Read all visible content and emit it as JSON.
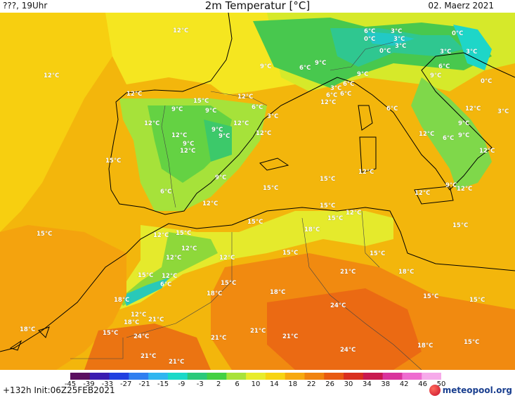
{
  "header": {
    "left": "???, 19Uhr",
    "title": "2m Temperatur [°C]",
    "date": "02. Maerz 2021"
  },
  "map": {
    "labels": [
      {
        "text": "12°C"
      },
      {
        "text": "12°C"
      },
      {
        "text": "12°C"
      },
      {
        "text": "9°C"
      },
      {
        "text": "6°C"
      },
      {
        "text": "9°C"
      },
      {
        "text": "6°C"
      },
      {
        "text": "3°C"
      },
      {
        "text": "0°C"
      },
      {
        "text": "3°C"
      },
      {
        "text": "0°C"
      },
      {
        "text": "3°C"
      },
      {
        "text": "3°C"
      },
      {
        "text": "0°C"
      },
      {
        "text": "3°C"
      },
      {
        "text": "6°C"
      },
      {
        "text": "9°C"
      },
      {
        "text": "6°C"
      },
      {
        "text": "9°C"
      },
      {
        "text": "0°C"
      },
      {
        "text": "3°C"
      },
      {
        "text": "6°C"
      },
      {
        "text": "6°C"
      },
      {
        "text": "12°C"
      },
      {
        "text": "12°C"
      },
      {
        "text": "15°C"
      },
      {
        "text": "12°C"
      },
      {
        "text": "9°C"
      },
      {
        "text": "9°C"
      },
      {
        "text": "6°C"
      },
      {
        "text": "3°C"
      },
      {
        "text": "12°C"
      },
      {
        "text": "9°C"
      },
      {
        "text": "12°C"
      },
      {
        "text": "9°C"
      },
      {
        "text": "12°C"
      },
      {
        "text": "9°C"
      },
      {
        "text": "12°C"
      },
      {
        "text": "12°C"
      },
      {
        "text": "9°C"
      },
      {
        "text": "12°C"
      },
      {
        "text": "3°C"
      },
      {
        "text": "12°C"
      },
      {
        "text": "9°C"
      },
      {
        "text": "6°C"
      },
      {
        "text": "6°C"
      },
      {
        "text": "12°C"
      },
      {
        "text": "15°C"
      },
      {
        "text": "9°C"
      },
      {
        "text": "15°C"
      },
      {
        "text": "15°C"
      },
      {
        "text": "12°C"
      },
      {
        "text": "12°C"
      },
      {
        "text": "9°C"
      },
      {
        "text": "6°C"
      },
      {
        "text": "12°C"
      },
      {
        "text": "15°C"
      },
      {
        "text": "12°C"
      },
      {
        "text": "15°C"
      },
      {
        "text": "12°C"
      },
      {
        "text": "15°C"
      },
      {
        "text": "15°C"
      },
      {
        "text": "15°C"
      },
      {
        "text": "12°C"
      },
      {
        "text": "18°C"
      },
      {
        "text": "15°C"
      },
      {
        "text": "15°C"
      },
      {
        "text": "12°C"
      },
      {
        "text": "12°C"
      },
      {
        "text": "15°C"
      },
      {
        "text": "15°C"
      },
      {
        "text": "21°C"
      },
      {
        "text": "18°C"
      },
      {
        "text": "15°C"
      },
      {
        "text": "12°C"
      },
      {
        "text": "15°C"
      },
      {
        "text": "6°C"
      },
      {
        "text": "18°C"
      },
      {
        "text": "18°C"
      },
      {
        "text": "15°C"
      },
      {
        "text": "18°C"
      },
      {
        "text": "12°C"
      },
      {
        "text": "18°C"
      },
      {
        "text": "21°C"
      },
      {
        "text": "24°C"
      },
      {
        "text": "18°C"
      },
      {
        "text": "15°C"
      },
      {
        "text": "24°C"
      },
      {
        "text": "21°C"
      },
      {
        "text": "21°C"
      },
      {
        "text": "21°C"
      },
      {
        "text": "24°C"
      },
      {
        "text": "18°C"
      },
      {
        "text": "15°C"
      },
      {
        "text": "21°C"
      },
      {
        "text": "21°C"
      }
    ]
  },
  "legend": {
    "ticks": [
      "-45",
      "-39",
      "-33",
      "-27",
      "-21",
      "-15",
      "-9",
      "-3",
      "2",
      "6",
      "10",
      "14",
      "18",
      "22",
      "26",
      "30",
      "34",
      "38",
      "42",
      "46",
      "50"
    ],
    "colors": [
      "#5b1060",
      "#3a1cb0",
      "#2040e0",
      "#2f7ff0",
      "#2fb6f0",
      "#19d9c8",
      "#2ac97a",
      "#44d043",
      "#a8e23a",
      "#e8ec2c",
      "#f7d412",
      "#f7a90f",
      "#f0830f",
      "#e85a12",
      "#d9301f",
      "#c81a50",
      "#d9349d",
      "#ee6cd0",
      "#f6aaea"
    ]
  },
  "footer": {
    "run": "+132h  Init:06Z25FEB2021",
    "brand": "meteopool.org"
  }
}
